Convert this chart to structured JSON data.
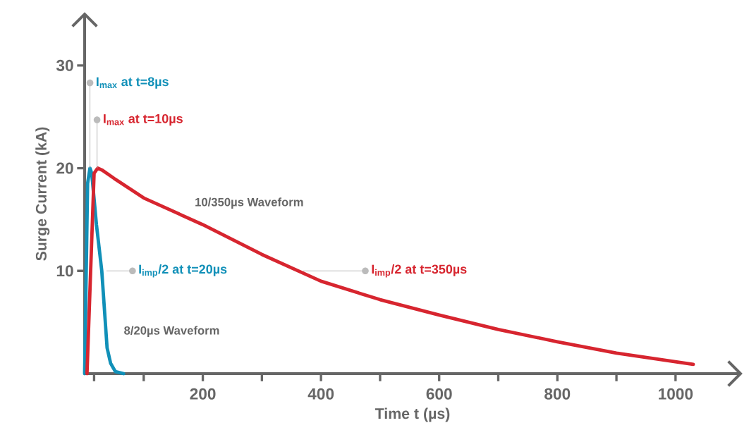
{
  "chart_data": {
    "type": "line",
    "xlabel": "Time t (µs)",
    "ylabel": "Surge Current (kA)",
    "xlim": [
      0,
      1110
    ],
    "ylim": [
      0,
      35
    ],
    "xticks": [
      {
        "value": 16,
        "label": null
      },
      {
        "value": 100,
        "label": null
      },
      200,
      {
        "value": 300,
        "label": null
      },
      400,
      {
        "value": 500,
        "label": null
      },
      600,
      {
        "value": 700,
        "label": null
      },
      800,
      {
        "value": 900,
        "label": null
      },
      1000
    ],
    "yticks": [
      10,
      20,
      30
    ],
    "series": [
      {
        "name": "8/20µs Waveform",
        "color": "#1190b8",
        "x": [
          0,
          5,
          9,
          12,
          20,
          29,
          38,
          44,
          52,
          66
        ],
        "values": [
          0,
          18.5,
          20,
          19.5,
          14.5,
          10,
          2.5,
          1,
          0.2,
          0
        ]
      },
      {
        "name": "10/350µs Waveform",
        "color": "#d7252f",
        "x": [
          4,
          16,
          22,
          30,
          50,
          100,
          200,
          300,
          400,
          500,
          600,
          700,
          800,
          900,
          1030
        ],
        "values": [
          0,
          19.5,
          20,
          19.8,
          19,
          17.1,
          14.5,
          11.6,
          9.0,
          7.2,
          5.7,
          4.3,
          3.1,
          2.0,
          0.9
        ]
      }
    ],
    "annotations": [
      {
        "text": "I$_{max}$ at t=8µs",
        "x": 9,
        "y": 28.3
      },
      {
        "text": "I$_{max}$ at t=10µs",
        "x": 21,
        "y": 24.7
      },
      {
        "text": "I$_{imp}$/2 at t=20µs",
        "x": 81,
        "y": 10
      },
      {
        "text": "I$_{imp}$/2 at t=350µs",
        "x": 475,
        "y": 10
      }
    ]
  }
}
